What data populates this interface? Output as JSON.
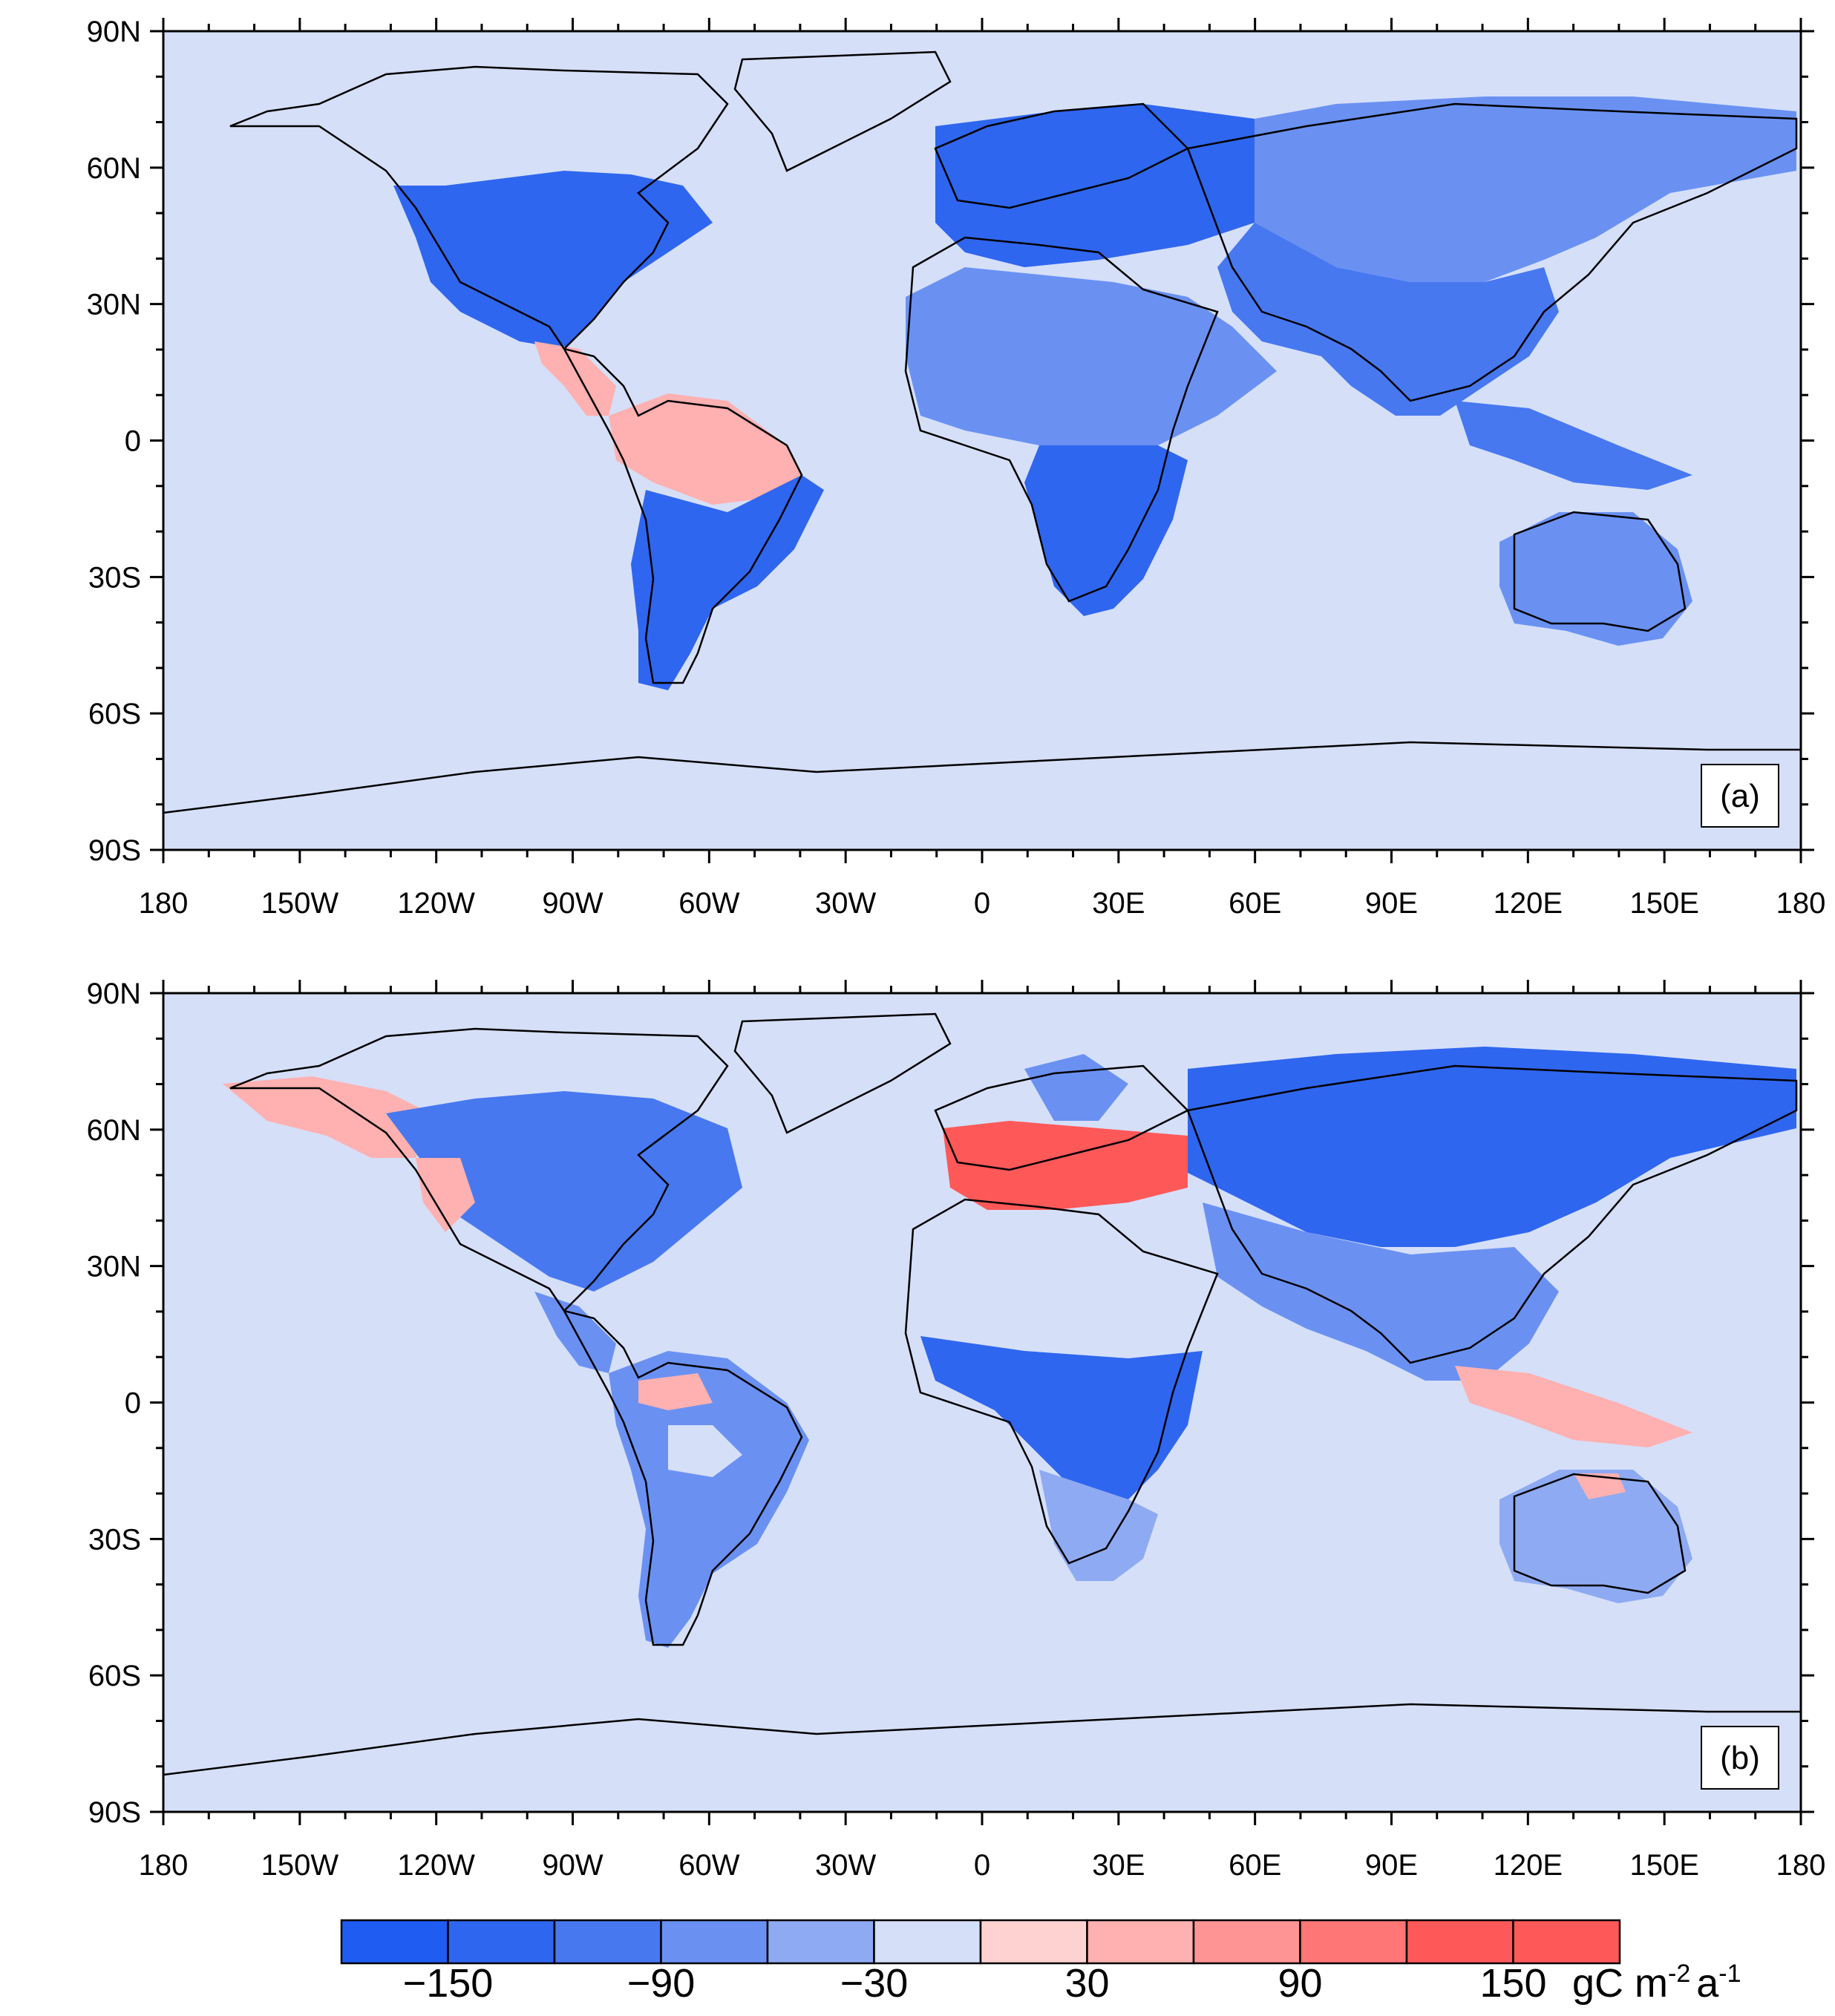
{
  "colors": {
    "ocean": "#d5dff8",
    "land_outline": "#000000",
    "levels": [
      "#1f5cf2",
      "#2f66ef",
      "#4778f0",
      "#6a91f2",
      "#8eaaf2",
      "#d5dff8",
      "#ffd2d2",
      "#ffb0b0",
      "#ff9494",
      "#ff7676",
      "#ff5858"
    ]
  },
  "axes": {
    "lat_labels": [
      "90N",
      "60N",
      "30N",
      "0",
      "30S",
      "60S",
      "90S"
    ],
    "lon_labels": [
      "180",
      "150W",
      "120W",
      "90W",
      "60W",
      "30W",
      "0",
      "30E",
      "60E",
      "90E",
      "120E",
      "150E",
      "180"
    ]
  },
  "panels": [
    {
      "tag": "(a)"
    },
    {
      "tag": "(b)"
    }
  ],
  "colorbar": {
    "tick_labels": [
      "−150",
      "−90",
      "−30",
      "30",
      "90",
      "150"
    ],
    "unit": "gC m",
    "unit_exp1": "-2",
    "unit_mid": "a",
    "unit_exp2": "-1"
  },
  "chart_data": [
    {
      "type": "heatmap",
      "panel": "(a)",
      "projection": "equirectangular",
      "lon_range": [
        -180,
        180
      ],
      "lat_range": [
        -90,
        90
      ],
      "color_levels": [
        -150,
        -120,
        -90,
        -60,
        -30,
        0,
        30,
        60,
        90,
        120,
        150
      ],
      "regions": [
        {
          "region": "North America (USA/Canada south)",
          "class": "-120 to -90"
        },
        {
          "region": "Central America / Mexico south",
          "class": "60 to 90"
        },
        {
          "region": "Northern South America / Amazon",
          "class": "60 to 90"
        },
        {
          "region": "Southern South America",
          "class": "-120 to -90"
        },
        {
          "region": "Northern Africa / Sahara",
          "class": "-60 to -30"
        },
        {
          "region": "Southern Africa",
          "class": "-150 to -120"
        },
        {
          "region": "Europe",
          "class": "-120 to -90"
        },
        {
          "region": "Northern Eurasia",
          "class": "-90 to -60"
        },
        {
          "region": "Central Asia / China",
          "class": "-90 to -60"
        },
        {
          "region": "South & Southeast Asia",
          "class": "-90 to -60"
        },
        {
          "region": "Australia",
          "class": "-60 to -30"
        },
        {
          "region": "Ocean / Antarctica / Greenland",
          "class": "0 to 30"
        }
      ]
    },
    {
      "type": "heatmap",
      "panel": "(b)",
      "projection": "equirectangular",
      "lon_range": [
        -180,
        180
      ],
      "lat_range": [
        -90,
        90
      ],
      "color_levels": [
        -150,
        -120,
        -90,
        -60,
        -30,
        0,
        30,
        60,
        90,
        120,
        150
      ],
      "regions": [
        {
          "region": "Alaska / NW Canada",
          "class": "30 to 90"
        },
        {
          "region": "Eastern North America",
          "class": "-120 to -60"
        },
        {
          "region": "Western Europe / Eastern Europe",
          "class": "90 to 150"
        },
        {
          "region": "Siberia",
          "class": "-120 to -90"
        },
        {
          "region": "Central Africa",
          "class": "-120 to -90"
        },
        {
          "region": "Sahara",
          "class": "-30 to 30"
        },
        {
          "region": "South America",
          "class": "-90 to 60"
        },
        {
          "region": "South Asia / China",
          "class": "-90 to -30"
        },
        {
          "region": "Indonesia",
          "class": "30 to 90"
        },
        {
          "region": "Australia",
          "class": "-60 to 30"
        },
        {
          "region": "Ocean / Antarctica / Greenland",
          "class": "0 to 30"
        }
      ]
    }
  ]
}
